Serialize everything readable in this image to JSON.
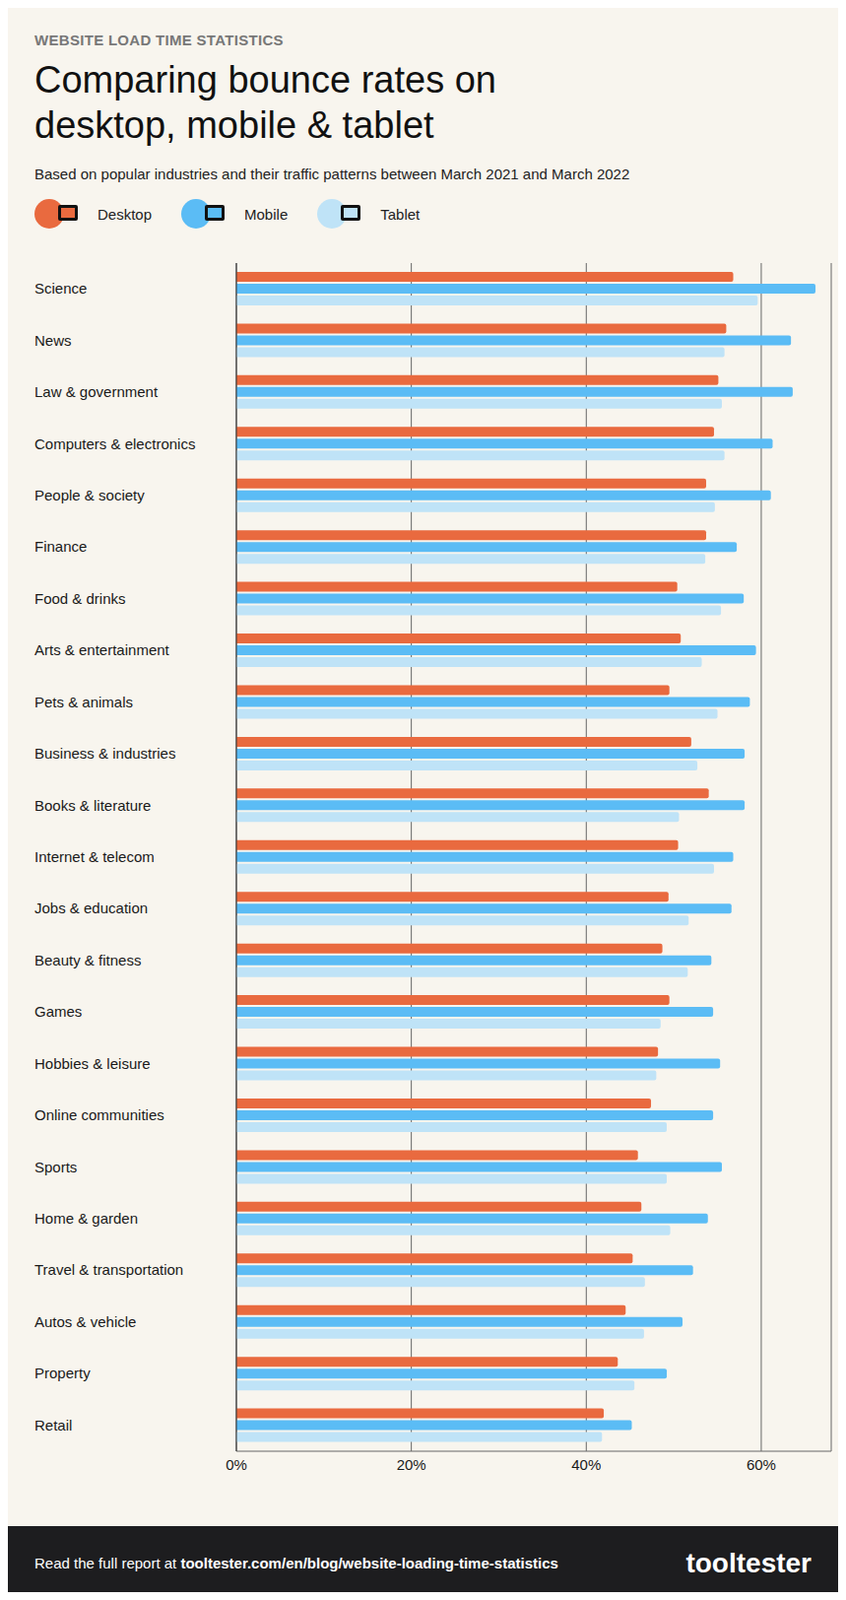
{
  "chart_data": {
    "type": "bar",
    "orientation": "horizontal",
    "kicker": "WEBSITE LOAD TIME STATISTICS",
    "title": "Comparing bounce rates on desktop, mobile & tablet",
    "subtitle": "Based on popular industries and their traffic patterns between March 2021 and March 2022",
    "categories": [
      "Science",
      "News",
      "Law & government",
      "Computers & electronics",
      "People & society",
      "Finance",
      "Food & drinks",
      "Arts & entertainment",
      "Pets & animals",
      "Business & industries",
      "Books & literature",
      "Internet & telecom",
      "Jobs & education",
      "Beauty & fitness",
      "Games",
      "Hobbies & leisure",
      "Online communities",
      "Sports",
      "Home & garden",
      "Travel & transportation",
      "Autos & vehicle",
      "Property",
      "Retail"
    ],
    "series": [
      {
        "name": "Desktop",
        "color": "#e96a3f",
        "values": [
          56.8,
          56.0,
          55.1,
          54.6,
          53.7,
          53.7,
          50.4,
          50.8,
          49.5,
          52.0,
          54.0,
          50.5,
          49.4,
          48.7,
          49.5,
          48.2,
          47.4,
          45.9,
          46.3,
          45.3,
          44.5,
          43.6,
          42.0
        ]
      },
      {
        "name": "Mobile",
        "color": "#5bbcf5",
        "values": [
          66.2,
          63.4,
          63.6,
          61.3,
          61.1,
          57.2,
          58.0,
          59.4,
          58.7,
          58.1,
          58.1,
          56.8,
          56.6,
          54.3,
          54.5,
          55.3,
          54.5,
          55.5,
          53.9,
          52.2,
          51.0,
          49.2,
          45.2
        ]
      },
      {
        "name": "Tablet",
        "color": "#bfe3f7",
        "values": [
          59.6,
          55.8,
          55.5,
          55.8,
          54.7,
          53.6,
          55.4,
          53.2,
          55.0,
          52.7,
          50.6,
          54.6,
          51.7,
          51.6,
          48.5,
          48.0,
          49.2,
          49.2,
          49.6,
          46.7,
          46.6,
          45.5,
          41.8
        ]
      }
    ],
    "xlim": [
      0,
      68
    ],
    "xticks": [
      {
        "value": 0,
        "label": "0%"
      },
      {
        "value": 20,
        "label": "20%"
      },
      {
        "value": 40,
        "label": "40%"
      },
      {
        "value": 60,
        "label": "60%"
      }
    ],
    "grid": true,
    "legend": "top left",
    "footer": {
      "text": "Read the full report at",
      "url": "tooltester.com/en/blog/website-loading-time-statistics",
      "brand": "tooltester"
    }
  }
}
